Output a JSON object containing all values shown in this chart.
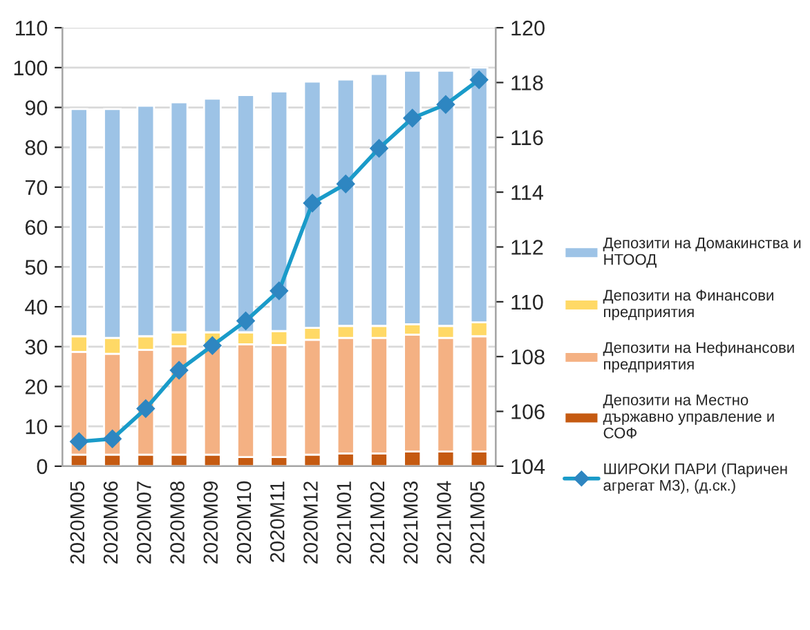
{
  "chart_data": {
    "type": "bar",
    "stacked": true,
    "categories": [
      "2020M05",
      "2020M06",
      "2020M07",
      "2020M08",
      "2020M09",
      "2020M10",
      "2020M11",
      "2020M12",
      "2021M01",
      "2021M02",
      "2021M03",
      "2021M04",
      "2021M05"
    ],
    "series": [
      {
        "name": "Депозити на Местно\nдържавно управление и\nСОФ",
        "color": "#c55a11",
        "values": [
          2.9,
          2.9,
          2.9,
          2.9,
          2.9,
          2.3,
          2.3,
          2.9,
          3.2,
          3.2,
          3.7,
          3.7,
          3.7
        ]
      },
      {
        "name": "Депозити на Нефинансови\nпредприятия",
        "color": "#f4b183",
        "values": [
          25.8,
          25.3,
          26.3,
          27.2,
          27.2,
          28.3,
          28.1,
          28.8,
          29.0,
          29.0,
          29.3,
          28.5,
          28.9
        ]
      },
      {
        "name": "Депозити на Финансови\nпредприятия",
        "color": "#ffd966",
        "values": [
          3.9,
          4.0,
          3.4,
          3.5,
          3.5,
          3.0,
          3.5,
          3.0,
          3.0,
          3.0,
          2.6,
          3.0,
          3.5
        ]
      },
      {
        "name": "Депозити на Домакинства и\nНТООД",
        "color": "#9dc3e6",
        "values": [
          57.0,
          57.4,
          57.8,
          57.7,
          58.6,
          59.5,
          60.1,
          61.8,
          61.8,
          63.2,
          63.6,
          64.0,
          63.9
        ]
      },
      {
        "name": "ШИРОКИ ПАРИ (Паричен\nагрегат М3), (д.ск.)",
        "type": "line",
        "axis": "y2",
        "marker": "diamond",
        "color": "#1a9bc9",
        "values": [
          104.9,
          105.0,
          106.1,
          107.5,
          108.4,
          109.3,
          110.4,
          113.6,
          114.3,
          115.6,
          116.7,
          117.2,
          118.1
        ]
      }
    ],
    "ylim": [
      0,
      110
    ],
    "yticks": [
      0,
      10,
      20,
      30,
      40,
      50,
      60,
      70,
      80,
      90,
      100,
      110
    ],
    "y2lim": [
      104,
      120
    ],
    "y2ticks": [
      104,
      106,
      108,
      110,
      112,
      114,
      116,
      118,
      120
    ],
    "grid": "y",
    "legend": "right"
  }
}
